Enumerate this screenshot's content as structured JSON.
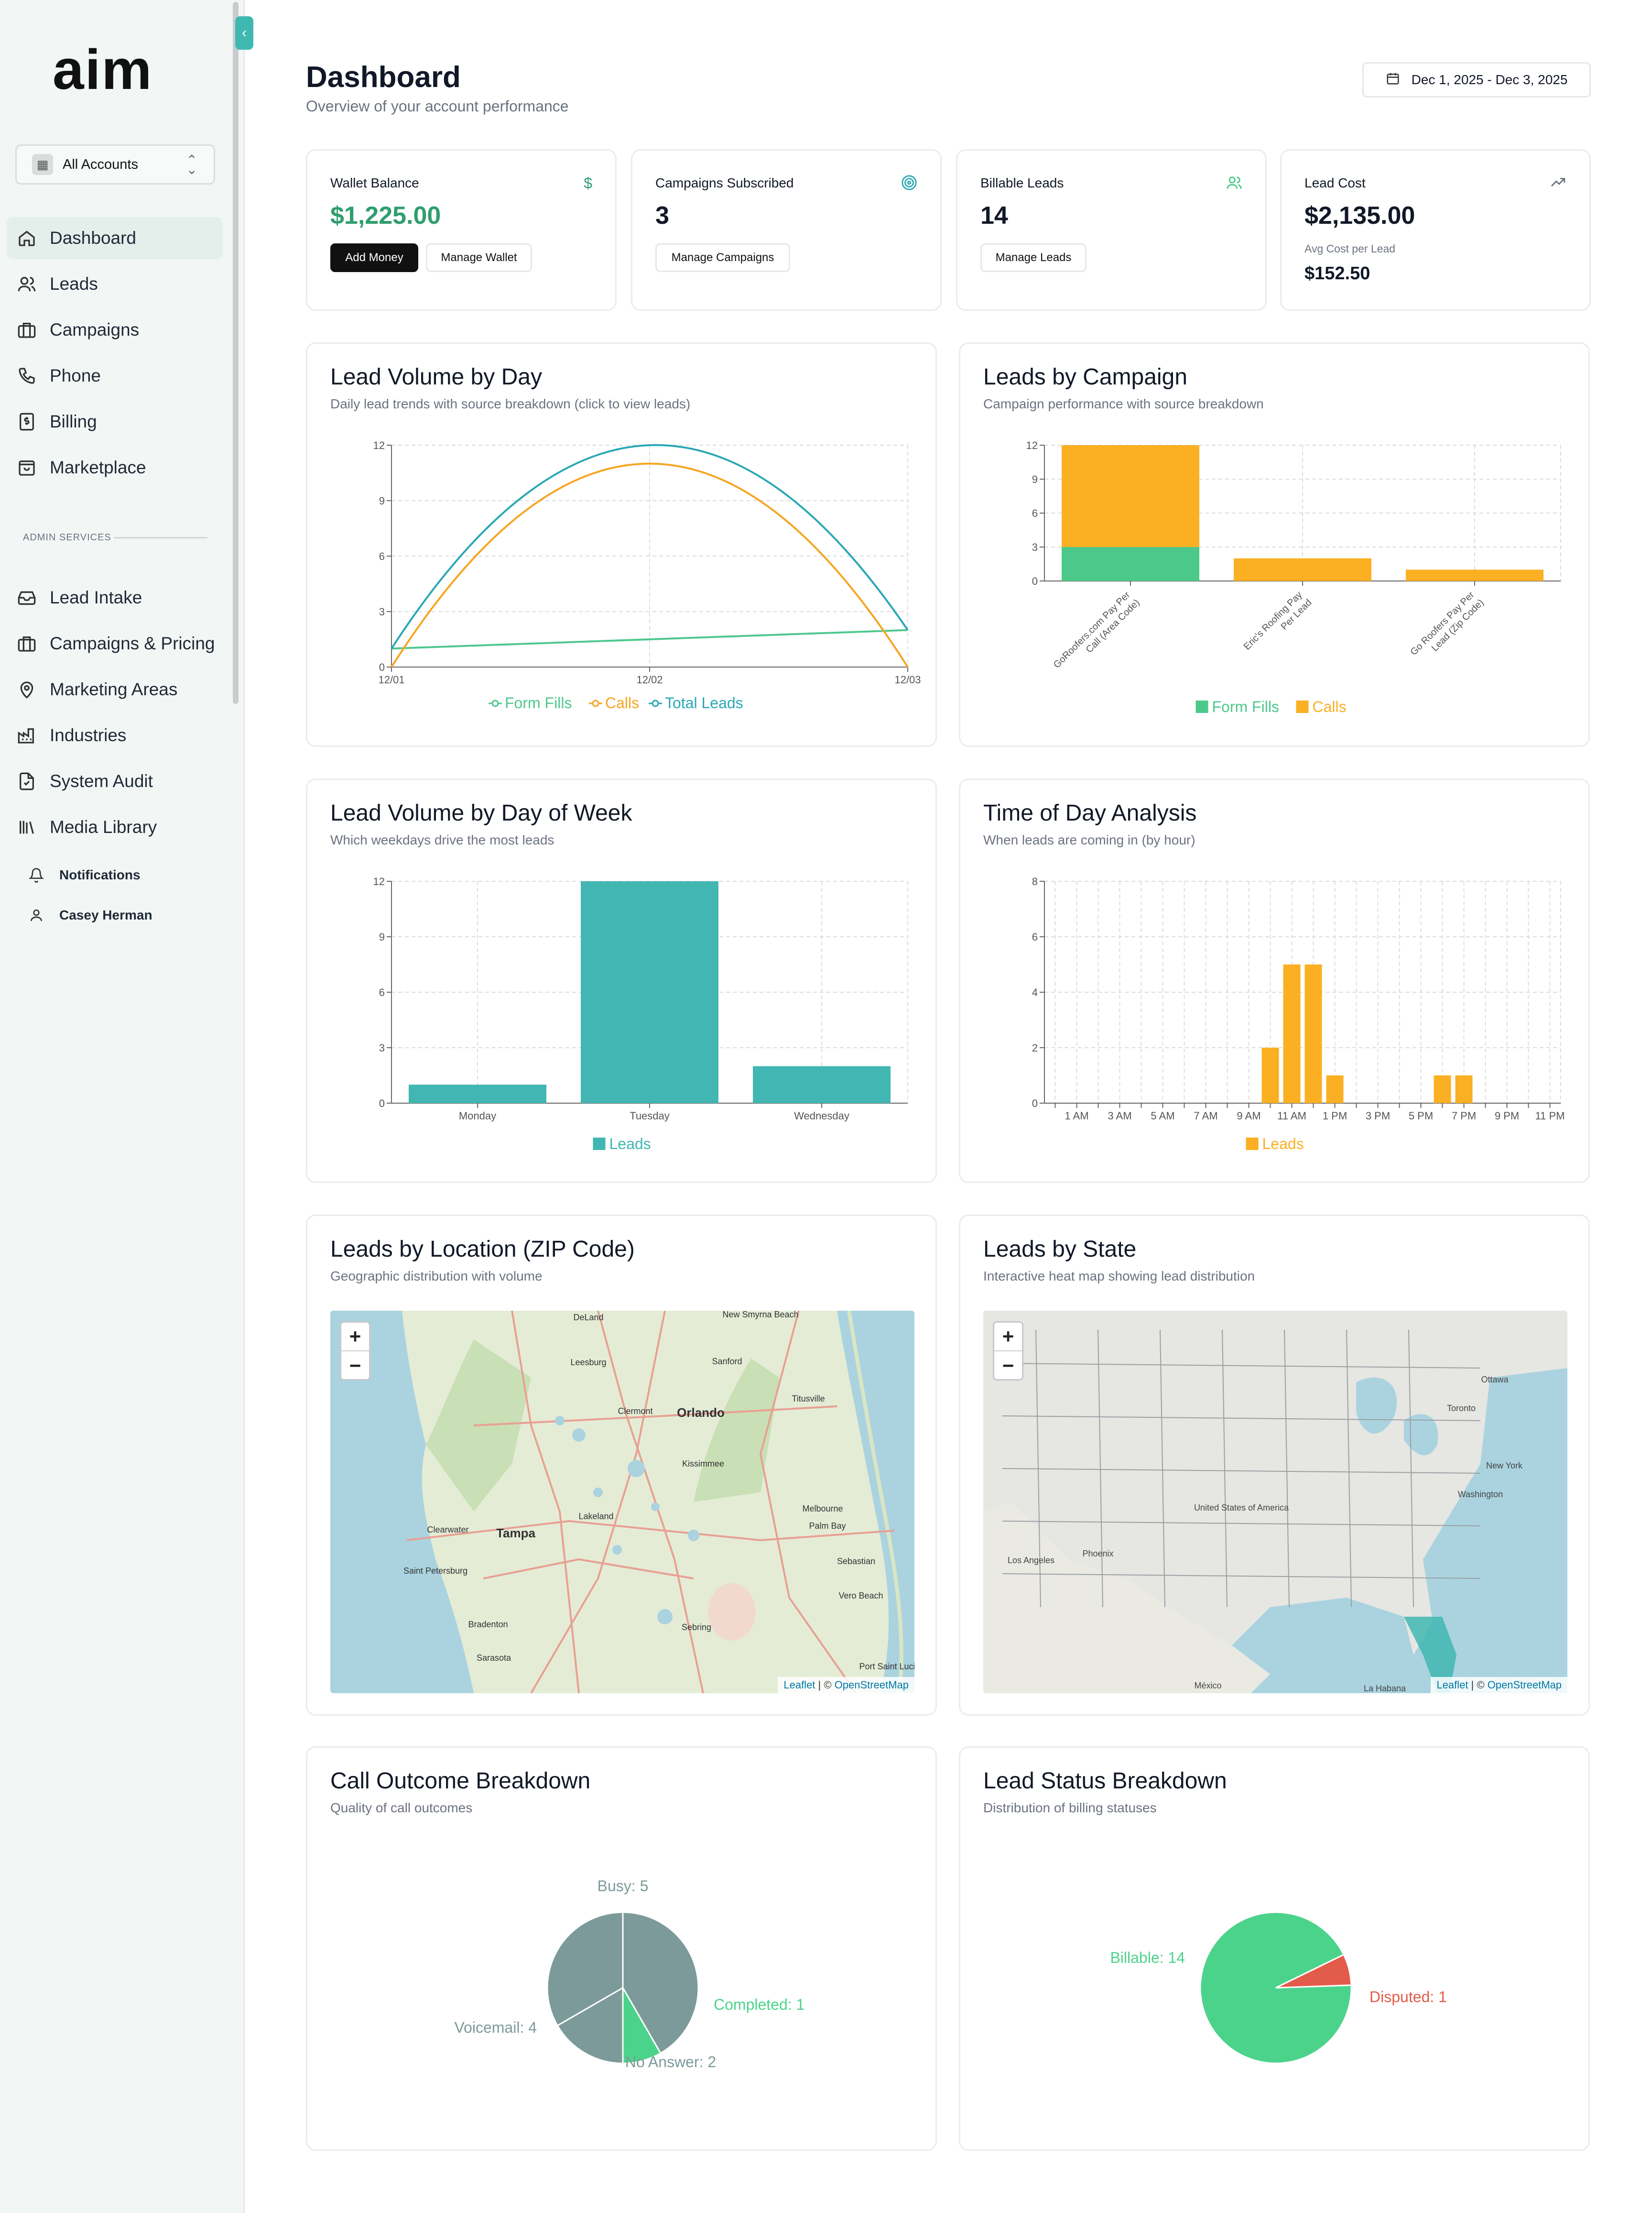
{
  "sidebar": {
    "logo": "aim",
    "account_select": "All Accounts",
    "nav": [
      {
        "label": "Dashboard",
        "icon": "home-icon"
      },
      {
        "label": "Leads",
        "icon": "users-icon"
      },
      {
        "label": "Campaigns",
        "icon": "briefcase-icon"
      },
      {
        "label": "Phone",
        "icon": "phone-icon"
      },
      {
        "label": "Billing",
        "icon": "receipt-icon"
      },
      {
        "label": "Marketplace",
        "icon": "shopping-bag-icon"
      }
    ],
    "admin_label": "ADMIN SERVICES",
    "admin_nav": [
      {
        "label": "Lead Intake",
        "icon": "inbox-icon"
      },
      {
        "label": "Campaigns & Pricing",
        "icon": "briefcase-icon"
      },
      {
        "label": "Marketing Areas",
        "icon": "map-pin-icon"
      },
      {
        "label": "Industries",
        "icon": "factory-icon"
      },
      {
        "label": "System Audit",
        "icon": "file-audit-icon"
      },
      {
        "label": "Media Library",
        "icon": "library-icon"
      }
    ],
    "bottom": [
      {
        "label": "Notifications",
        "icon": "bell-icon"
      },
      {
        "label": "Casey Herman",
        "icon": "user-icon"
      }
    ]
  },
  "header": {
    "title": "Dashboard",
    "subtitle": "Overview of your account performance",
    "date_range": "Dec 1, 2025 - Dec 3, 2025"
  },
  "stats": {
    "wallet": {
      "title": "Wallet Balance",
      "value": "$1,225.00",
      "btn_add": "Add Money",
      "btn_manage": "Manage Wallet"
    },
    "campaigns": {
      "title": "Campaigns Subscribed",
      "value": "3",
      "btn": "Manage Campaigns"
    },
    "billable": {
      "title": "Billable Leads",
      "value": "14",
      "btn": "Manage Leads"
    },
    "cost": {
      "title": "Lead Cost",
      "value": "$2,135.00",
      "avg_label": "Avg Cost per Lead",
      "avg_value": "$152.50"
    }
  },
  "cards": {
    "lead_volume": {
      "title": "Lead Volume by Day",
      "subtitle": "Daily lead trends with source breakdown (click to view leads)"
    },
    "by_campaign": {
      "title": "Leads by Campaign",
      "subtitle": "Campaign performance with source breakdown"
    },
    "day_of_week": {
      "title": "Lead Volume by Day of Week",
      "subtitle": "Which weekdays drive the most leads"
    },
    "time_of_day": {
      "title": "Time of Day Analysis",
      "subtitle": "When leads are coming in (by hour)"
    },
    "zip_map": {
      "title": "Leads by Location (ZIP Code)",
      "subtitle": "Geographic distribution with volume"
    },
    "state_map": {
      "title": "Leads by State",
      "subtitle": "Interactive heat map showing lead distribution"
    },
    "call_outcome": {
      "title": "Call Outcome Breakdown",
      "subtitle": "Quality of call outcomes"
    },
    "lead_status": {
      "title": "Lead Status Breakdown",
      "subtitle": "Distribution of billing statuses"
    }
  },
  "maps": {
    "zoom_in": "+",
    "zoom_out": "−",
    "attribution_leaflet": "Leaflet",
    "attribution_sep": " | © ",
    "attribution_osm": "OpenStreetMap",
    "florida_labels": [
      "DeLand",
      "New Smyrna Beach",
      "Leesburg",
      "Sanford",
      "Clermont",
      "Orlando",
      "Titusville",
      "Kissimmee",
      "Clearwater",
      "Tampa",
      "Lakeland",
      "Melbourne",
      "Palm Bay",
      "Saint Petersburg",
      "Sebastian",
      "Vero Beach",
      "Bradenton",
      "Sebring",
      "Sarasota",
      "Port Saint Lucie"
    ],
    "us_labels": [
      "Ottawa",
      "Toronto",
      "New York",
      "Washington",
      "United States of America",
      "Phoenix",
      "Los Angeles",
      "México",
      "La Habana"
    ]
  },
  "chart_data": [
    {
      "type": "line",
      "x": [
        "12/01",
        "12/02",
        "12/03"
      ],
      "ylim": [
        0,
        12
      ],
      "yticks": [
        0,
        3,
        6,
        9,
        12
      ],
      "series": [
        {
          "name": "Form Fills",
          "values": [
            1,
            1.5,
            2
          ],
          "color": "#4fc78f"
        },
        {
          "name": "Calls",
          "values": [
            0,
            11,
            0
          ],
          "color": "#f5a623"
        },
        {
          "name": "Total Leads",
          "values": [
            1,
            12,
            2
          ],
          "color": "#2aa8b4"
        }
      ]
    },
    {
      "type": "bar",
      "stacked": true,
      "categories": [
        "GoRoofers.com Pay Per Call (Area Code)",
        "Eric's Roofing Pay Per Lead",
        "Go Roofers Pay Per Lead (Zip Code)"
      ],
      "ylim": [
        0,
        12
      ],
      "yticks": [
        0,
        3,
        6,
        9,
        12
      ],
      "series": [
        {
          "name": "Form Fills",
          "values": [
            3,
            0,
            0
          ],
          "color": "#4cc98a"
        },
        {
          "name": "Calls",
          "values": [
            9,
            2,
            1
          ],
          "color": "#fbaf22"
        }
      ]
    },
    {
      "type": "bar",
      "categories": [
        "Monday",
        "Tuesday",
        "Wednesday"
      ],
      "ylim": [
        0,
        12
      ],
      "yticks": [
        0,
        3,
        6,
        9,
        12
      ],
      "series": [
        {
          "name": "Leads",
          "values": [
            1,
            12,
            2
          ],
          "color": "#41b6b2"
        }
      ]
    },
    {
      "type": "bar",
      "categories": [
        "12 AM",
        "1 AM",
        "2 AM",
        "3 AM",
        "4 AM",
        "5 AM",
        "6 AM",
        "7 AM",
        "8 AM",
        "9 AM",
        "10 AM",
        "11 AM",
        "12 PM",
        "1 PM",
        "2 PM",
        "3 PM",
        "4 PM",
        "5 PM",
        "6 PM",
        "7 PM",
        "8 PM",
        "9 PM",
        "10 PM",
        "11 PM"
      ],
      "tick_labels": [
        "1 AM",
        "3 AM",
        "5 AM",
        "7 AM",
        "9 AM",
        "11 AM",
        "1 PM",
        "3 PM",
        "5 PM",
        "7 PM",
        "9 PM",
        "11 PM"
      ],
      "ylim": [
        0,
        8
      ],
      "yticks": [
        0,
        2,
        4,
        6,
        8
      ],
      "series": [
        {
          "name": "Leads",
          "values": [
            0,
            0,
            0,
            0,
            0,
            0,
            0,
            0,
            0,
            0,
            2,
            5,
            5,
            1,
            0,
            0,
            0,
            0,
            1,
            1,
            0,
            0,
            0,
            0
          ],
          "color": "#fbaf22"
        }
      ]
    },
    {
      "type": "pie",
      "slices": [
        {
          "label": "Busy: 5",
          "value": 5,
          "color": "#7c9a99"
        },
        {
          "label": "Completed: 1",
          "value": 1,
          "color": "#4cd38b"
        },
        {
          "label": "No Answer: 2",
          "value": 2,
          "color": "#7c9a99"
        },
        {
          "label": "Voicemail: 4",
          "value": 4,
          "color": "#7c9a99"
        }
      ]
    },
    {
      "type": "pie",
      "slices": [
        {
          "label": "Billable: 14",
          "value": 14,
          "color": "#4cd38b"
        },
        {
          "label": "Disputed: 1",
          "value": 1,
          "color": "#e35b4a"
        }
      ]
    }
  ]
}
